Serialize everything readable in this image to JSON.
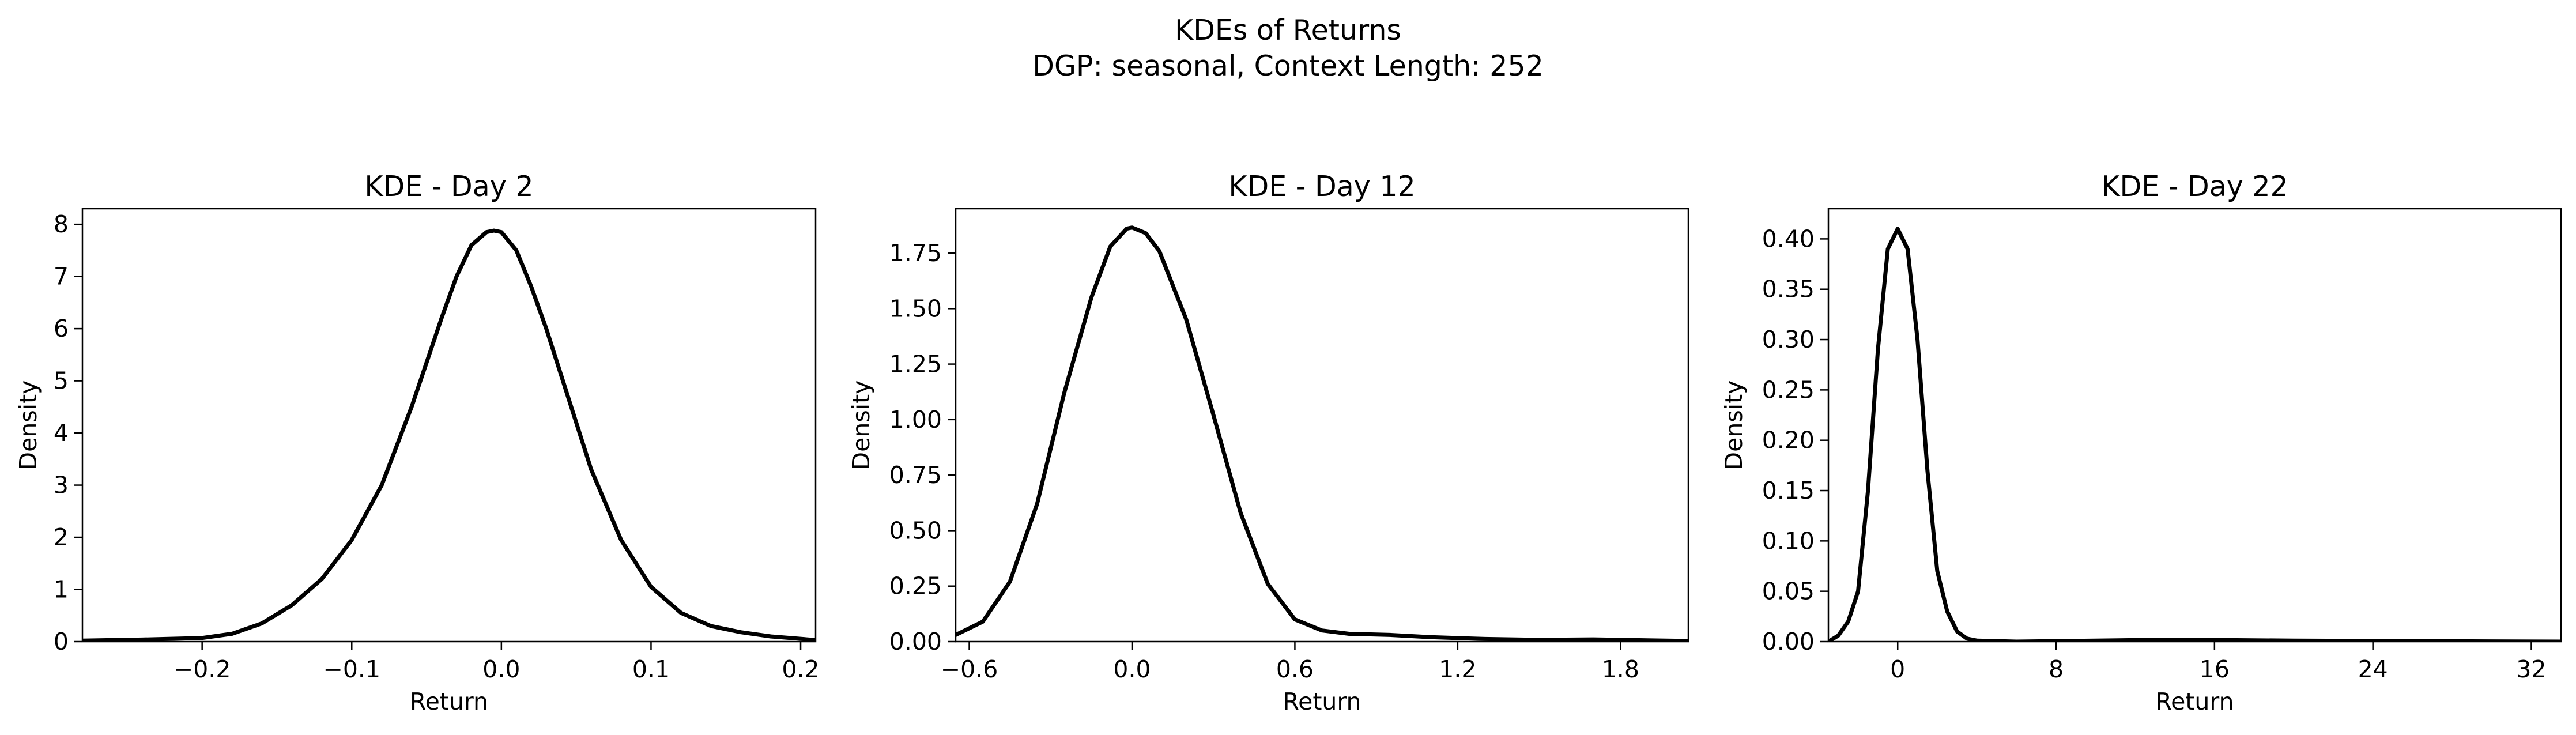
{
  "figure": {
    "title_line1": "KDEs of Returns",
    "title_line2": "DGP: seasonal, Context Length: 252"
  },
  "chart_data": [
    {
      "type": "line",
      "title": "KDE - Day 2",
      "xlabel": "Return",
      "ylabel": "Density",
      "xlim": [
        -0.28,
        0.21
      ],
      "ylim": [
        0,
        8.3
      ],
      "xticks": [
        -0.2,
        -0.1,
        0.0,
        0.1,
        0.2
      ],
      "xtick_labels": [
        "−0.2",
        "−0.1",
        "0.0",
        "0.1",
        "0.2"
      ],
      "yticks": [
        0,
        1,
        2,
        3,
        4,
        5,
        6,
        7,
        8
      ],
      "ytick_labels": [
        "0",
        "1",
        "2",
        "3",
        "4",
        "5",
        "6",
        "7",
        "8"
      ],
      "grid": false,
      "color": "#000000",
      "series": [
        {
          "x": [
            -0.28,
            -0.24,
            -0.2,
            -0.18,
            -0.16,
            -0.14,
            -0.12,
            -0.1,
            -0.08,
            -0.06,
            -0.04,
            -0.03,
            -0.02,
            -0.01,
            -0.005,
            0.0,
            0.01,
            0.02,
            0.03,
            0.04,
            0.06,
            0.08,
            0.1,
            0.12,
            0.14,
            0.16,
            0.18,
            0.21
          ],
          "y": [
            0.02,
            0.04,
            0.07,
            0.15,
            0.35,
            0.7,
            1.2,
            1.95,
            3.0,
            4.5,
            6.2,
            7.0,
            7.6,
            7.85,
            7.88,
            7.85,
            7.5,
            6.8,
            6.0,
            5.1,
            3.3,
            1.95,
            1.05,
            0.55,
            0.3,
            0.18,
            0.1,
            0.03
          ]
        }
      ]
    },
    {
      "type": "line",
      "title": "KDE - Day 12",
      "xlabel": "Return",
      "ylabel": "Density",
      "xlim": [
        -0.65,
        2.05
      ],
      "ylim": [
        0,
        1.95
      ],
      "xticks": [
        -0.6,
        0.0,
        0.6,
        1.2,
        1.8
      ],
      "xtick_labels": [
        "−0.6",
        "0.0",
        "0.6",
        "1.2",
        "1.8"
      ],
      "yticks": [
        0.0,
        0.25,
        0.5,
        0.75,
        1.0,
        1.25,
        1.5,
        1.75
      ],
      "ytick_labels": [
        "0.00",
        "0.25",
        "0.50",
        "0.75",
        "1.00",
        "1.25",
        "1.50",
        "1.75"
      ],
      "grid": false,
      "color": "#000000",
      "series": [
        {
          "x": [
            -0.65,
            -0.55,
            -0.45,
            -0.35,
            -0.25,
            -0.15,
            -0.08,
            -0.02,
            0.0,
            0.05,
            0.1,
            0.2,
            0.3,
            0.4,
            0.5,
            0.6,
            0.7,
            0.8,
            0.95,
            1.1,
            1.3,
            1.5,
            1.7,
            1.9,
            2.05
          ],
          "y": [
            0.03,
            0.09,
            0.27,
            0.62,
            1.12,
            1.55,
            1.78,
            1.86,
            1.865,
            1.84,
            1.76,
            1.45,
            1.02,
            0.58,
            0.26,
            0.1,
            0.05,
            0.035,
            0.03,
            0.02,
            0.012,
            0.008,
            0.01,
            0.006,
            0.003
          ]
        }
      ]
    },
    {
      "type": "line",
      "title": "KDE - Day 22",
      "xlabel": "Return",
      "ylabel": "Density",
      "xlim": [
        -3.5,
        33.5
      ],
      "ylim": [
        0,
        0.43
      ],
      "xticks": [
        0,
        8,
        16,
        24,
        32
      ],
      "xtick_labels": [
        "0",
        "8",
        "16",
        "24",
        "32"
      ],
      "yticks": [
        0.0,
        0.05,
        0.1,
        0.15,
        0.2,
        0.25,
        0.3,
        0.35,
        0.4
      ],
      "ytick_labels": [
        "0.00",
        "0.05",
        "0.10",
        "0.15",
        "0.20",
        "0.25",
        "0.30",
        "0.35",
        "0.40"
      ],
      "grid": false,
      "color": "#000000",
      "series": [
        {
          "x": [
            -3.5,
            -3.0,
            -2.5,
            -2.0,
            -1.5,
            -1.0,
            -0.5,
            0.0,
            0.5,
            1.0,
            1.5,
            2.0,
            2.5,
            3.0,
            3.5,
            4.0,
            6.0,
            10.0,
            14.0,
            20.0,
            26.0,
            33.5
          ],
          "y": [
            0.0,
            0.006,
            0.02,
            0.05,
            0.15,
            0.29,
            0.39,
            0.41,
            0.39,
            0.3,
            0.17,
            0.07,
            0.03,
            0.01,
            0.003,
            0.001,
            0.0,
            0.001,
            0.002,
            0.001,
            0.0005,
            0.0
          ]
        }
      ]
    }
  ]
}
